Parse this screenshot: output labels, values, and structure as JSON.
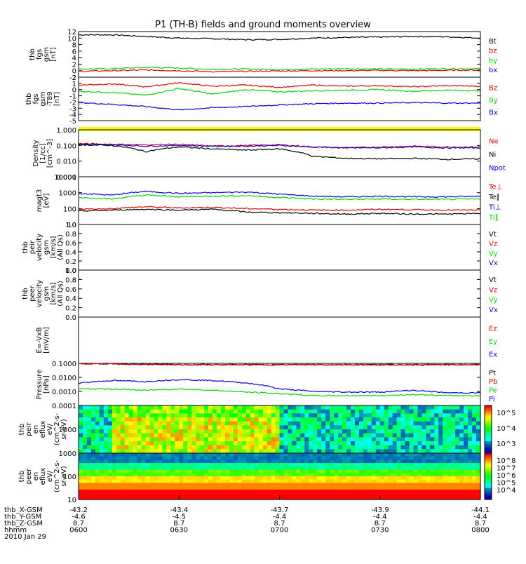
{
  "title": "P1 (TH-B) fields and ground moments overview",
  "colors": {
    "black": "#000000",
    "red": "#e00000",
    "green": "#00d400",
    "blue": "#0000e0",
    "yellow": "#ffff00"
  },
  "chart_data": [
    {
      "panel": "fgs_gsm_ml",
      "type": "line",
      "ylabel": [
        "thb",
        "fgs",
        "gsm",
        "[nT]"
      ],
      "yticks": [
        "12",
        "10",
        "8",
        "6",
        "4",
        "2",
        "0",
        "-2"
      ],
      "ylim": [
        -2,
        12
      ],
      "legend": [
        {
          "label": "Bt",
          "color": "black"
        },
        {
          "label": "bz",
          "color": "red"
        },
        {
          "label": "by",
          "color": "green"
        },
        {
          "label": "bx",
          "color": "blue"
        }
      ],
      "series": [
        {
          "color": "black",
          "values": [
            11.0,
            11.0,
            10.5,
            10.0,
            9.8,
            9.5,
            9.6,
            10.0,
            10.2,
            10.3,
            10.5,
            10.4,
            10.0
          ]
        },
        {
          "color": "green",
          "values": [
            0.5,
            0.6,
            1.0,
            0.8,
            0.4,
            0.5,
            0.3,
            0.5,
            0.6,
            0.5,
            0.5,
            0.6,
            0.6
          ]
        },
        {
          "color": "red",
          "values": [
            -0.2,
            0.0,
            0.2,
            0.0,
            -0.3,
            -0.2,
            -0.1,
            0.0,
            0.0,
            0.1,
            0.0,
            0.1,
            0.2
          ]
        }
      ]
    },
    {
      "panel": "fgs_gsm_t89",
      "type": "line",
      "ylabel": [
        "thb",
        "fgs",
        "gsm",
        "-T89",
        "[nT]"
      ],
      "yticks": [
        "2",
        "1",
        "0",
        "-1",
        "-2",
        "-3",
        "-4",
        "-5"
      ],
      "ylim": [
        -5.5,
        2.2
      ],
      "legend": [
        {
          "label": "Bz",
          "color": "red"
        },
        {
          "label": "By",
          "color": "green"
        },
        {
          "label": "Bx",
          "color": "blue"
        }
      ],
      "series": [
        {
          "color": "red",
          "values": [
            0.8,
            1.0,
            0.5,
            1.2,
            0.6,
            0.8,
            0.4,
            0.8,
            0.6,
            0.7,
            0.5,
            0.7,
            0.6
          ]
        },
        {
          "color": "green",
          "values": [
            -0.3,
            -0.5,
            -1.0,
            0.2,
            -0.8,
            0.0,
            -0.4,
            -0.2,
            -0.1,
            0.0,
            -0.3,
            -0.1,
            -0.2
          ]
        },
        {
          "color": "blue",
          "values": [
            -2.3,
            -2.6,
            -3.0,
            -3.6,
            -3.2,
            -3.0,
            -2.7,
            -2.5,
            -2.4,
            -2.4,
            -2.3,
            -2.4,
            -2.4
          ]
        }
      ]
    },
    {
      "panel": "density",
      "type": "line",
      "scale": "log",
      "ylabel": [
        "Density",
        "[1/cc]",
        "[cm^-3]"
      ],
      "yticks": [
        "1.000",
        "0.100",
        "0.010",
        "0.001"
      ],
      "ylim": [
        0.001,
        1.0
      ],
      "legend": [
        {
          "label": "Ne",
          "color": "red"
        },
        {
          "label": "Ni",
          "color": "black"
        },
        {
          "label": "Npot",
          "color": "blue"
        }
      ],
      "series": [
        {
          "color": "red",
          "values": [
            0.13,
            0.12,
            0.11,
            0.12,
            0.09,
            0.1,
            0.11,
            0.08,
            0.07,
            0.08,
            0.09,
            0.08,
            0.08
          ]
        },
        {
          "color": "blue",
          "values": [
            0.12,
            0.11,
            0.09,
            0.1,
            0.09,
            0.09,
            0.1,
            0.08,
            0.07,
            0.07,
            0.08,
            0.07,
            0.07
          ]
        },
        {
          "color": "black",
          "values": [
            0.11,
            0.1,
            0.04,
            0.08,
            0.06,
            0.05,
            0.06,
            0.02,
            0.015,
            0.014,
            0.015,
            0.013,
            0.014
          ]
        }
      ]
    },
    {
      "panel": "temperature",
      "type": "line",
      "scale": "log",
      "ylabel": [
        "magt3",
        "[eV]"
      ],
      "yticks": [
        "10000",
        "1000",
        "100",
        "10"
      ],
      "ylim": [
        10,
        10000
      ],
      "legend": [
        {
          "label": "Te⊥",
          "color": "red"
        },
        {
          "label": "Te∥",
          "color": "black"
        },
        {
          "label": "Ti⊥",
          "color": "blue"
        },
        {
          "label": "Ti∥",
          "color": "green"
        }
      ],
      "series": [
        {
          "color": "blue",
          "values": [
            900,
            700,
            1200,
            900,
            1000,
            1100,
            800,
            600,
            550,
            600,
            550,
            550,
            600
          ]
        },
        {
          "color": "green",
          "values": [
            500,
            400,
            700,
            550,
            600,
            650,
            500,
            400,
            380,
            400,
            380,
            380,
            400
          ]
        },
        {
          "color": "red",
          "values": [
            90,
            100,
            130,
            110,
            120,
            100,
            90,
            80,
            80,
            90,
            85,
            80,
            80
          ]
        },
        {
          "color": "black",
          "values": [
            70,
            80,
            90,
            80,
            90,
            60,
            55,
            50,
            45,
            50,
            45,
            45,
            50
          ]
        }
      ]
    },
    {
      "panel": "peir_velocity",
      "type": "line",
      "ylabel": [
        "thb",
        "peir",
        "velocity",
        "gsm",
        "[km/s]",
        "(All Qs)"
      ],
      "yticks": [
        "1.0",
        "0.8",
        "0.6",
        "0.4",
        "0.2",
        "0.0"
      ],
      "ylim": [
        0,
        1
      ],
      "legend": [
        {
          "label": "Vt",
          "color": "black"
        },
        {
          "label": "Vz",
          "color": "red"
        },
        {
          "label": "Vy",
          "color": "green"
        },
        {
          "label": "Vx",
          "color": "blue"
        }
      ],
      "series": []
    },
    {
      "panel": "peer_velocity",
      "type": "line",
      "ylabel": [
        "thb",
        "peer",
        "velocity",
        "gsm",
        "[km/s]",
        "(All Qs)"
      ],
      "yticks": [
        "1.0",
        "0.8",
        "0.6",
        "0.4",
        "0.2",
        "0.0"
      ],
      "ylim": [
        0,
        1
      ],
      "legend": [
        {
          "label": "Vt",
          "color": "black"
        },
        {
          "label": "Vz",
          "color": "red"
        },
        {
          "label": "Vy",
          "color": "green"
        },
        {
          "label": "Vx",
          "color": "blue"
        }
      ],
      "series": []
    },
    {
      "panel": "efield",
      "type": "line",
      "ylabel": [
        "E=-VxB",
        "[mV/m]"
      ],
      "yticks": [],
      "ylim": [
        0,
        1
      ],
      "legend": [
        {
          "label": "Ez",
          "color": "red"
        },
        {
          "label": "Ey",
          "color": "green"
        },
        {
          "label": "Ex",
          "color": "blue"
        }
      ],
      "series": []
    },
    {
      "panel": "pressure",
      "type": "line",
      "scale": "log",
      "ylabel": [
        "Pressure",
        "[nPa]"
      ],
      "yticks": [
        "0.1000",
        "0.0100",
        "0.0010",
        "0.0001"
      ],
      "ylim": [
        0.0001,
        0.1
      ],
      "legend": [
        {
          "label": "Pt",
          "color": "black"
        },
        {
          "label": "Pb",
          "color": "red"
        },
        {
          "label": "Pe",
          "color": "green"
        },
        {
          "label": "Pi",
          "color": "blue"
        }
      ],
      "series": [
        {
          "color": "black",
          "values": [
            0.1,
            0.09,
            0.085,
            0.08,
            0.08,
            0.08,
            0.08,
            0.08,
            0.08,
            0.08,
            0.08,
            0.08,
            0.08
          ]
        },
        {
          "color": "red",
          "values": [
            0.095,
            0.09,
            0.085,
            0.08,
            0.08,
            0.08,
            0.08,
            0.08,
            0.08,
            0.08,
            0.08,
            0.08,
            0.08
          ]
        },
        {
          "color": "blue",
          "values": [
            0.004,
            0.006,
            0.005,
            0.007,
            0.006,
            0.004,
            0.0015,
            0.001,
            0.0009,
            0.0009,
            0.0012,
            0.0008,
            0.0008
          ]
        },
        {
          "color": "green",
          "values": [
            0.0015,
            0.0015,
            0.0012,
            0.0015,
            0.0012,
            0.0009,
            0.0007,
            0.0005,
            0.0005,
            0.0005,
            0.0006,
            0.0005,
            0.0005
          ]
        }
      ]
    },
    {
      "panel": "peir_en_eflux",
      "type": "heatmap",
      "ylabel": [
        "thb",
        "peir",
        "en",
        "eflux",
        "eV/",
        "(cm^2-s-",
        "sr-eV)"
      ],
      "yticks": [
        "1000"
      ],
      "colorbar_ticks": [
        "10^5",
        "10^4",
        "10^3"
      ]
    },
    {
      "panel": "peer_en_eflux",
      "type": "heatmap",
      "ylabel": [
        "thb",
        "peer",
        "en",
        "eflux",
        "eV/",
        "(cm^2-s-",
        "sr-eV)"
      ],
      "yticks": [
        "1000",
        "100",
        "10"
      ],
      "colorbar_ticks": [
        "10^8",
        "10^7",
        "10^6",
        "10^5",
        "10^4"
      ]
    }
  ],
  "xaxis": {
    "rows": [
      {
        "label": "thb_X-GSM",
        "values": [
          "-43.2",
          "-43.4",
          "-43.7",
          "-43.9",
          "-44.1"
        ]
      },
      {
        "label": "thb_Y-GSM",
        "values": [
          "-4.6",
          "-4.5",
          "-4.4",
          "-4.4",
          "-4.4"
        ]
      },
      {
        "label": "thb_Z-GSM",
        "values": [
          "8.7",
          "8.7",
          "8.7",
          "8.7",
          "8.7"
        ]
      },
      {
        "label": "hhmm",
        "values": [
          "0600",
          "0630",
          "0700",
          "0730",
          "0800"
        ]
      }
    ],
    "date": "2010 Jan 29"
  }
}
